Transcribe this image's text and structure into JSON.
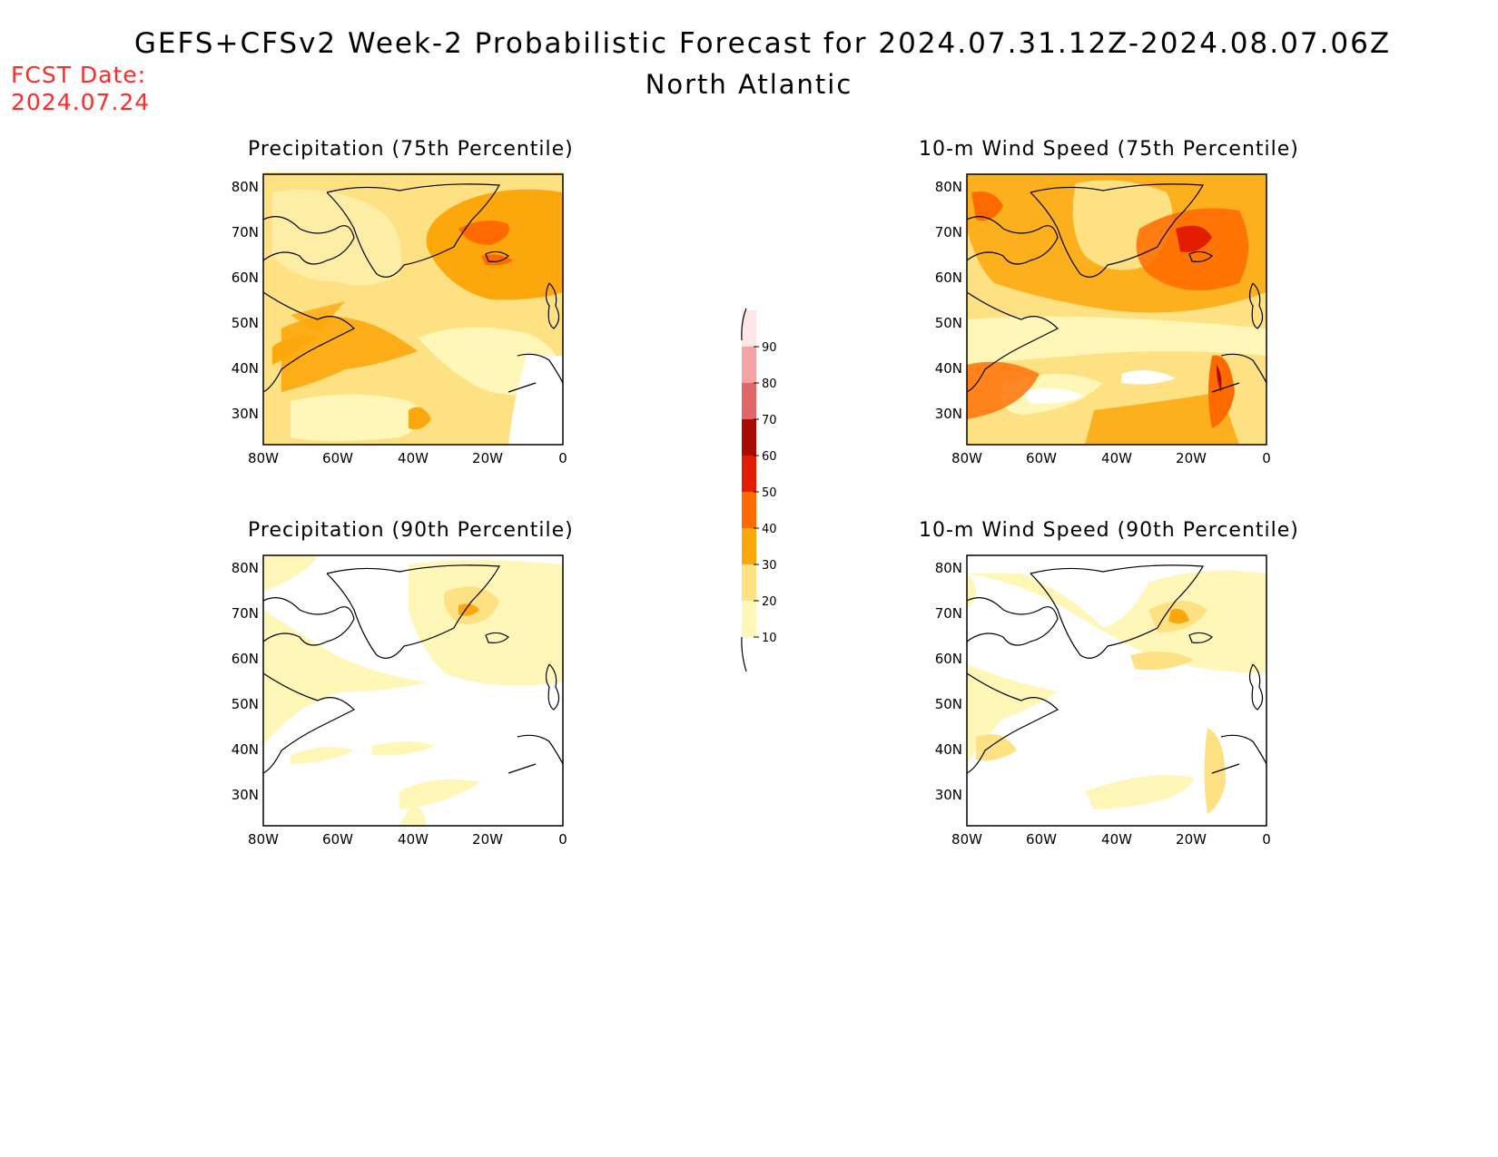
{
  "title": "GEFS+CFSv2 Week-2 Probabilistic Forecast for 2024.07.31.12Z-2024.08.07.06Z",
  "subtitle": "North Atlantic",
  "fcst_date": {
    "label": "FCST Date:",
    "value": "2024.07.24"
  },
  "panels": [
    {
      "title": "Precipitation (75th Percentile)"
    },
    {
      "title": "10-m Wind Speed (75th Percentile)"
    },
    {
      "title": "Precipitation (90th Percentile)"
    },
    {
      "title": "10-m Wind Speed (90th Percentile)"
    }
  ],
  "axes": {
    "lat_labels": [
      "80N",
      "70N",
      "60N",
      "50N",
      "40N",
      "30N"
    ],
    "lon_labels": [
      "80W",
      "60W",
      "40W",
      "20W",
      "0"
    ]
  },
  "colorbar": {
    "levels": [
      "10",
      "20",
      "30",
      "40",
      "50",
      "60",
      "70",
      "80",
      "90"
    ],
    "colors": [
      "#fff7b8",
      "#fde183",
      "#fca70c",
      "#ff6a00",
      "#e31d00",
      "#a80b00",
      "#e06767",
      "#f3a5a5",
      "#fde6e6"
    ]
  }
}
